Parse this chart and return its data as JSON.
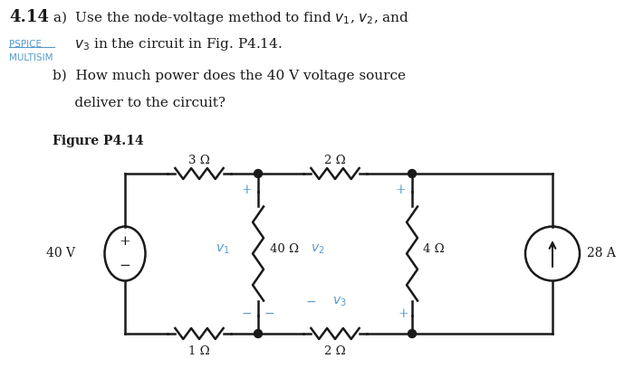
{
  "bg_color": "#ffffff",
  "text_color": "#1a1a1a",
  "blue_color": "#5599cc",
  "problem_num": "4.14",
  "pspice": "PSPICE",
  "multisim": "MULTISIM",
  "part_a1": "a)  Use the node-voltage method to find $v_1$, $v_2$, and",
  "part_a2": "     $v_3$ in the circuit in Fig. P4.14.",
  "part_b1": "b)  How much power does the 40 V voltage source",
  "part_b2": "     deliver to the circuit?",
  "fig_label": "Figure P4.14",
  "r_3ohm": "3 Ω",
  "r_2ohm_top": "2 Ω",
  "r_1ohm": "1 Ω",
  "r_2ohm_bot": "2 Ω",
  "r_40ohm": "40 Ω",
  "r_4ohm": "4 Ω",
  "voltage_src": "40 V",
  "current_src": "28 A"
}
